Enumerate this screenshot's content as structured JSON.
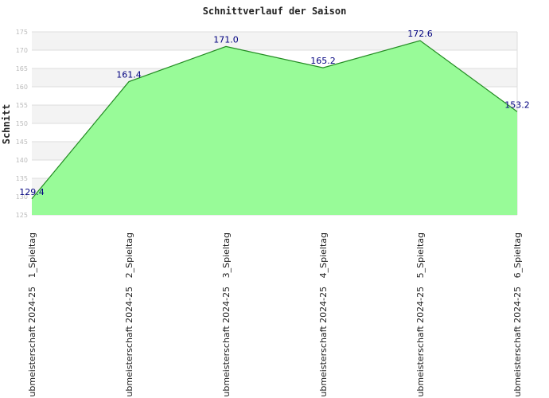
{
  "chart_data": {
    "type": "area",
    "title": "Schnittverlauf der Saison",
    "xlabel": "",
    "ylabel": "Schnitt",
    "categories": [
      "ubmeisterschaft 2024-25   1_Spieltag",
      "ubmeisterschaft 2024-25   2_Spieltag",
      "ubmeisterschaft 2024-25   3_Spieltag",
      "ubmeisterschaft 2024-25   4_Spieltag",
      "ubmeisterschaft 2024-25   5_Spieltag",
      "ubmeisterschaft 2024-25   6_Spieltag"
    ],
    "series": [
      {
        "values": [
          129.4,
          161.4,
          171.0,
          165.2,
          172.6,
          153.2
        ]
      }
    ],
    "data_labels": [
      "129.4",
      "161.4",
      "171.0",
      "165.2",
      "172.6",
      "153.2"
    ],
    "yticks": [
      125,
      130,
      135,
      140,
      145,
      150,
      155,
      160,
      165,
      170,
      175
    ],
    "ylim": [
      125,
      175
    ],
    "grid": true,
    "colors": {
      "fill": "#98fb98",
      "line": "#228b22",
      "band": "#f3f3f3",
      "grid": "#dddddd",
      "label": "#00007f"
    }
  }
}
